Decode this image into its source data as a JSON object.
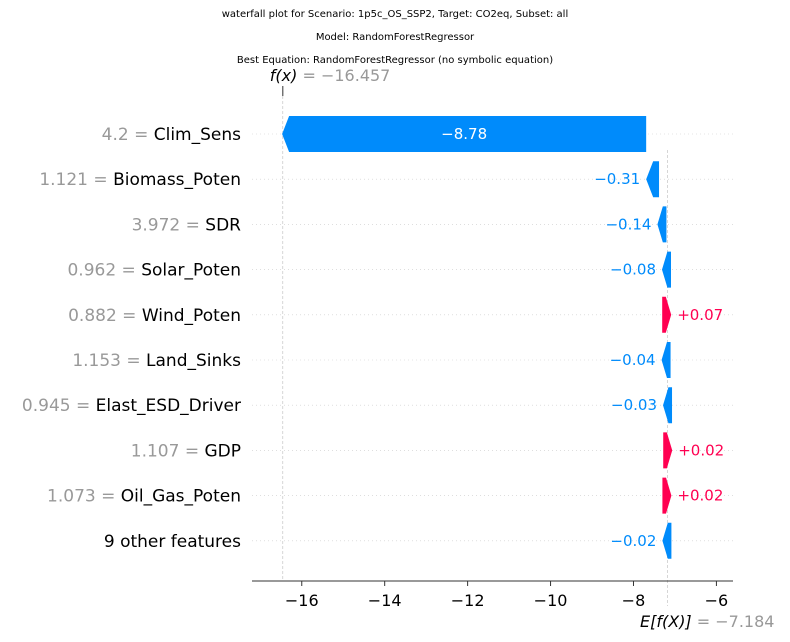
{
  "titles": [
    "waterfall plot for Scenario: 1p5c_OS_SSP2, Target: CO2eq, Subset: all",
    "Model: RandomForestRegressor",
    "Best Equation: RandomForestRegressor (no symbolic equation)"
  ],
  "fx_label": "f(x)",
  "fx_value_text": "= −16.457",
  "efx_label": "E[f(X)]",
  "efx_value_text": "= −7.184",
  "colors": {
    "positive": "#ff0051",
    "negative": "#008bfb",
    "value_gray": "#999999",
    "dashed": "#bbbbbb"
  },
  "chart_data": {
    "type": "waterfall",
    "base_value": -7.184,
    "output_value": -16.457,
    "xlim": [
      -17.2,
      -5.6
    ],
    "x_ticks": [
      -16,
      -14,
      -12,
      -10,
      -8,
      -6
    ],
    "x_tick_labels": [
      "−16",
      "−14",
      "−12",
      "−10",
      "−8",
      "−6"
    ],
    "grid": "dotted horizontal",
    "rows": [
      {
        "value": "4.2",
        "feature": "Clim_Sens",
        "contribution": -8.78,
        "label": "−8.78"
      },
      {
        "value": "1.121",
        "feature": "Biomass_Poten",
        "contribution": -0.31,
        "label": "−0.31"
      },
      {
        "value": "3.972",
        "feature": "SDR",
        "contribution": -0.14,
        "label": "−0.14"
      },
      {
        "value": "0.962",
        "feature": "Solar_Poten",
        "contribution": -0.08,
        "label": "−0.08"
      },
      {
        "value": "0.882",
        "feature": "Wind_Poten",
        "contribution": 0.07,
        "label": "+0.07"
      },
      {
        "value": "1.153",
        "feature": "Land_Sinks",
        "contribution": -0.04,
        "label": "−0.04"
      },
      {
        "value": "0.945",
        "feature": "Elast_ESD_Driver",
        "contribution": -0.03,
        "label": "−0.03"
      },
      {
        "value": "1.107",
        "feature": "GDP",
        "contribution": 0.02,
        "label": "+0.02"
      },
      {
        "value": "1.073",
        "feature": "Oil_Gas_Poten",
        "contribution": 0.02,
        "label": "+0.02"
      },
      {
        "value": "",
        "feature": "9 other features",
        "contribution": -0.02,
        "label": "−0.02"
      }
    ]
  }
}
